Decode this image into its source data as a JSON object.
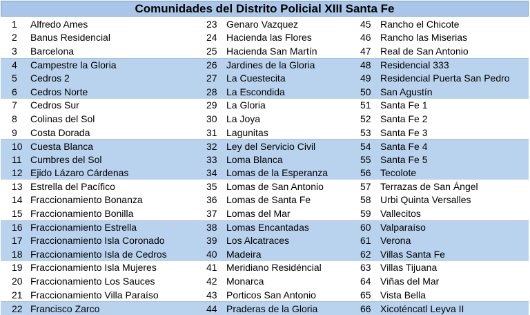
{
  "title": "Comunidades del Distrito Policial XIII Santa Fe",
  "columns": [
    [
      {
        "num": "1",
        "name": "Alfredo Ames"
      },
      {
        "num": "2",
        "name": "Banus Residencial"
      },
      {
        "num": "3",
        "name": "Barcelona"
      },
      {
        "num": "4",
        "name": "Campestre la Gloria"
      },
      {
        "num": "5",
        "name": "Cedros 2"
      },
      {
        "num": "6",
        "name": "Cedros Norte"
      },
      {
        "num": "7",
        "name": "Cedros Sur"
      },
      {
        "num": "8",
        "name": "Colinas del Sol"
      },
      {
        "num": "9",
        "name": "Costa Dorada"
      },
      {
        "num": "10",
        "name": "Cuesta Blanca"
      },
      {
        "num": "11",
        "name": "Cumbres del Sol"
      },
      {
        "num": "12",
        "name": "Ejido Lázaro Cárdenas"
      },
      {
        "num": "13",
        "name": "Estrella del Pacífico"
      },
      {
        "num": "14",
        "name": "Fraccionamiento Bonanza"
      },
      {
        "num": "15",
        "name": "Fraccionamiento Bonilla"
      },
      {
        "num": "16",
        "name": "Fraccionamiento Estrella"
      },
      {
        "num": "17",
        "name": "Fraccionamiento Isla Coronado"
      },
      {
        "num": "18",
        "name": "Fraccionamiento Isla de Cedros"
      },
      {
        "num": "19",
        "name": "Fraccionamiento Isla Mujeres"
      },
      {
        "num": "20",
        "name": "Fraccionamiento Los Sauces"
      },
      {
        "num": "21",
        "name": "Fraccionamiento Villa Paraíso"
      },
      {
        "num": "22",
        "name": "Francisco Zarco"
      }
    ],
    [
      {
        "num": "23",
        "name": "Genaro Vazquez"
      },
      {
        "num": "24",
        "name": "Hacienda las Flores"
      },
      {
        "num": "25",
        "name": "Hacienda San Martín"
      },
      {
        "num": "26",
        "name": "Jardines de la Gloria"
      },
      {
        "num": "27",
        "name": "La Cuestecita"
      },
      {
        "num": "28",
        "name": "La Escondida"
      },
      {
        "num": "29",
        "name": "La Gloria"
      },
      {
        "num": "30",
        "name": "La Joya"
      },
      {
        "num": "31",
        "name": "Lagunitas"
      },
      {
        "num": "32",
        "name": "Ley del Servicio Civil"
      },
      {
        "num": "33",
        "name": "Loma Blanca"
      },
      {
        "num": "34",
        "name": "Lomas de la Esperanza"
      },
      {
        "num": "35",
        "name": "Lomas de San Antonio"
      },
      {
        "num": "36",
        "name": "Lomas de Santa Fe"
      },
      {
        "num": "37",
        "name": "Lomas del Mar"
      },
      {
        "num": "38",
        "name": "Lomas Encantadas"
      },
      {
        "num": "39",
        "name": "Los Alcatraces"
      },
      {
        "num": "40",
        "name": "Madeira"
      },
      {
        "num": "41",
        "name": "Meridiano Residéncial"
      },
      {
        "num": "42",
        "name": "Monarca"
      },
      {
        "num": "43",
        "name": "Porticos San Antonio"
      },
      {
        "num": "44",
        "name": "Praderas de la Gloria"
      }
    ],
    [
      {
        "num": "45",
        "name": "Rancho el Chicote"
      },
      {
        "num": "46",
        "name": "Rancho las Miserias"
      },
      {
        "num": "47",
        "name": "Real de San Antonio"
      },
      {
        "num": "48",
        "name": "Residencial 333"
      },
      {
        "num": "49",
        "name": "Residencial Puerta San Pedro"
      },
      {
        "num": "50",
        "name": "San Agustín"
      },
      {
        "num": "51",
        "name": "Santa Fe 1"
      },
      {
        "num": "52",
        "name": "Santa Fe 2"
      },
      {
        "num": "53",
        "name": "Santa Fe 3"
      },
      {
        "num": "54",
        "name": "Santa Fe 4"
      },
      {
        "num": "55",
        "name": "Santa Fe 5"
      },
      {
        "num": "56",
        "name": "Tecolote"
      },
      {
        "num": "57",
        "name": "Terrazas de San Ángel"
      },
      {
        "num": "58",
        "name": "Urbi Quinta Versalles"
      },
      {
        "num": "59",
        "name": "Vallecitos"
      },
      {
        "num": "60",
        "name": "Valparaíso"
      },
      {
        "num": "61",
        "name": "Verona"
      },
      {
        "num": "62",
        "name": "Villas Santa Fe"
      },
      {
        "num": "63",
        "name": "Villas Tijuana"
      },
      {
        "num": "64",
        "name": "Viñas del Mar"
      },
      {
        "num": "65",
        "name": "Vista Bella"
      },
      {
        "num": "66",
        "name": "Xicoténcatl Leyva II"
      }
    ]
  ],
  "colors": {
    "title_fill": "#a9c6e8",
    "row_band_fill": "#b9d3ee"
  }
}
